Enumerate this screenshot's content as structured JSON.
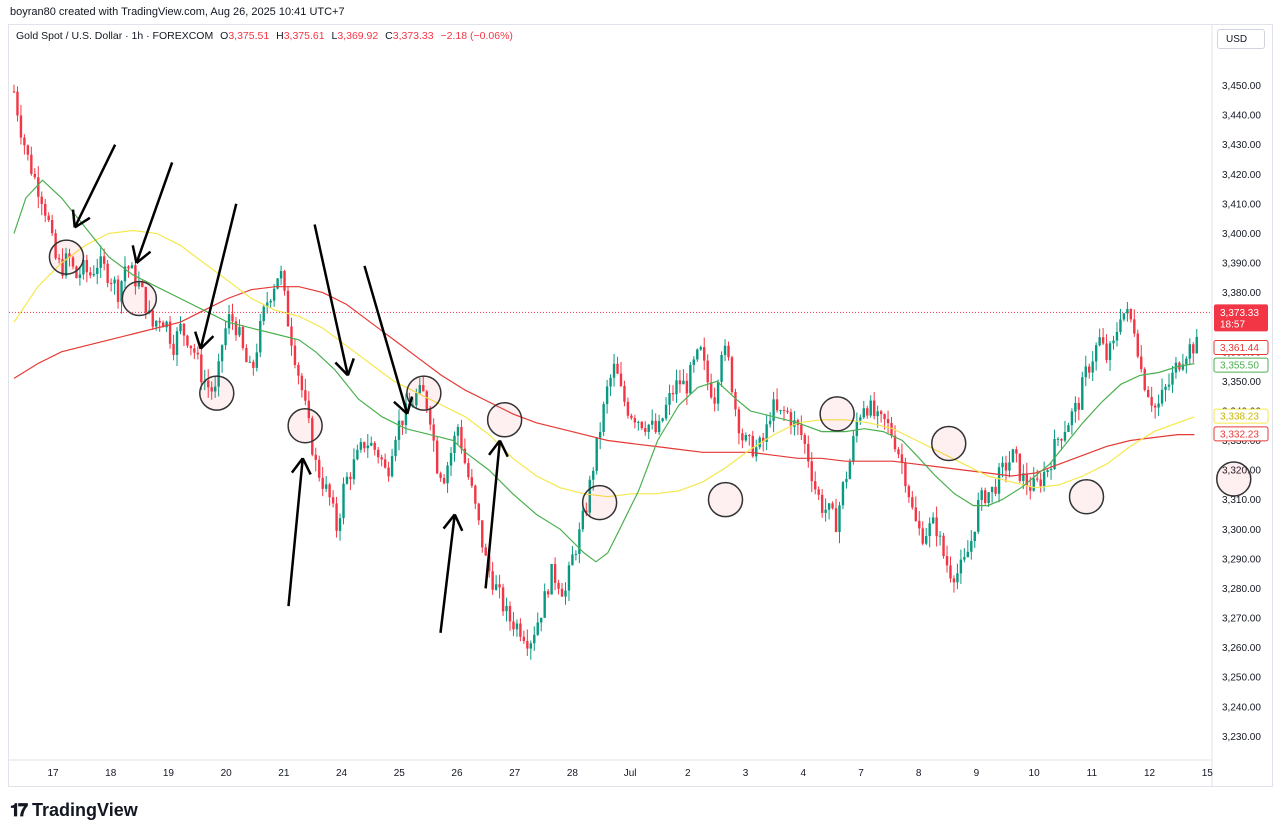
{
  "header": {
    "text": "boyran80 created with TradingView.com, Aug 26, 2025 10:41 UTC+7"
  },
  "legend": {
    "symbol": "Gold Spot / U.S. Dollar · 1h · FOREXCOM",
    "o_label": "O",
    "o": "3,375.51",
    "h_label": "H",
    "h": "3,375.61",
    "l_label": "L",
    "l": "3,369.92",
    "c_label": "C",
    "c": "3,373.33",
    "change": "−2.18 (−0.06%)"
  },
  "currency": "USD",
  "footer": {
    "brand": "TradingView"
  },
  "colors": {
    "up": "#089981",
    "down": "#f23645",
    "ma_green": "#4caf50",
    "ma_yellow": "#f5e84a",
    "ma_red": "#e53935"
  },
  "chart_data": {
    "type": "candlestick",
    "ylim": [
      3222,
      3462
    ],
    "y_ticks": [
      "3,230.00",
      "3,240.00",
      "3,250.00",
      "3,260.00",
      "3,270.00",
      "3,280.00",
      "3,290.00",
      "3,300.00",
      "3,310.00",
      "3,320.00",
      "3,330.00",
      "3,340.00",
      "3,350.00",
      "3,360.00",
      "3,370.00",
      "3,380.00",
      "3,390.00",
      "3,400.00",
      "3,410.00",
      "3,420.00",
      "3,430.00",
      "3,440.00",
      "3,450.00"
    ],
    "x_ticks": [
      "17",
      "18",
      "19",
      "20",
      "21",
      "24",
      "25",
      "26",
      "27",
      "28",
      "Jul",
      "2",
      "3",
      "4",
      "7",
      "8",
      "9",
      "10",
      "11",
      "12",
      "15"
    ],
    "last_price": {
      "value": 3373.33,
      "label": "3,373.33",
      "countdown": "18:57"
    },
    "price_labels": [
      {
        "label": "3,361.44",
        "value": 3361.44,
        "color": "#e53935"
      },
      {
        "label": "3,355.50",
        "value": 3355.5,
        "color": "#4caf50"
      },
      {
        "label": "3,338.23",
        "value": 3338.23,
        "color": "#f5e84a"
      },
      {
        "label": "3,332.23",
        "value": 3332.23,
        "color": "#e53935"
      }
    ],
    "close_path": [
      [
        0,
        3448
      ],
      [
        0.3,
        3435
      ],
      [
        0.6,
        3425
      ],
      [
        0.9,
        3418
      ],
      [
        1.2,
        3412
      ],
      [
        1.5,
        3402
      ],
      [
        1.7,
        3392
      ],
      [
        2.0,
        3388
      ],
      [
        2.3,
        3392
      ],
      [
        2.6,
        3385
      ],
      [
        2.9,
        3388
      ],
      [
        3.2,
        3386
      ],
      [
        3.5,
        3390
      ],
      [
        3.8,
        3388
      ],
      [
        4.1,
        3385
      ],
      [
        4.4,
        3380
      ],
      [
        4.7,
        3390
      ],
      [
        5.0,
        3386
      ],
      [
        5.3,
        3382
      ],
      [
        5.6,
        3375
      ],
      [
        5.8,
        3368
      ],
      [
        6.1,
        3372
      ],
      [
        6.4,
        3370
      ],
      [
        6.7,
        3362
      ],
      [
        7.0,
        3368
      ],
      [
        7.3,
        3365
      ],
      [
        7.6,
        3360
      ],
      [
        7.9,
        3352
      ],
      [
        8.2,
        3348
      ],
      [
        8.5,
        3346
      ],
      [
        8.8,
        3365
      ],
      [
        9.1,
        3372
      ],
      [
        9.4,
        3368
      ],
      [
        9.7,
        3358
      ],
      [
        10.0,
        3352
      ],
      [
        10.3,
        3365
      ],
      [
        10.6,
        3376
      ],
      [
        10.9,
        3382
      ],
      [
        11.2,
        3388
      ],
      [
        11.5,
        3372
      ],
      [
        11.8,
        3360
      ],
      [
        12.1,
        3348
      ],
      [
        12.4,
        3335
      ],
      [
        12.7,
        3322
      ],
      [
        13.0,
        3316
      ],
      [
        13.3,
        3310
      ],
      [
        13.6,
        3300
      ],
      [
        13.9,
        3315
      ],
      [
        14.2,
        3320
      ],
      [
        14.5,
        3325
      ],
      [
        14.8,
        3330
      ],
      [
        15.1,
        3328
      ],
      [
        15.4,
        3325
      ],
      [
        15.7,
        3318
      ],
      [
        16.0,
        3332
      ],
      [
        16.3,
        3337
      ],
      [
        16.6,
        3340
      ],
      [
        16.9,
        3345
      ],
      [
        17.2,
        3346
      ],
      [
        17.5,
        3340
      ],
      [
        17.8,
        3322
      ],
      [
        18.1,
        3318
      ],
      [
        18.4,
        3326
      ],
      [
        18.7,
        3335
      ],
      [
        19.0,
        3322
      ],
      [
        19.3,
        3312
      ],
      [
        19.6,
        3300
      ],
      [
        19.9,
        3288
      ],
      [
        20.2,
        3282
      ],
      [
        20.5,
        3276
      ],
      [
        20.8,
        3270
      ],
      [
        21.1,
        3268
      ],
      [
        21.4,
        3266
      ],
      [
        21.7,
        3262
      ],
      [
        22.0,
        3268
      ],
      [
        22.3,
        3275
      ],
      [
        22.6,
        3285
      ],
      [
        22.9,
        3283
      ],
      [
        23.2,
        3278
      ],
      [
        23.5,
        3290
      ],
      [
        23.8,
        3298
      ],
      [
        24.1,
        3308
      ],
      [
        24.4,
        3322
      ],
      [
        24.7,
        3335
      ],
      [
        25.0,
        3348
      ],
      [
        25.3,
        3355
      ],
      [
        25.6,
        3345
      ],
      [
        25.9,
        3340
      ],
      [
        26.2,
        3338
      ],
      [
        26.5,
        3336
      ],
      [
        26.8,
        3335
      ],
      [
        27.1,
        3332
      ],
      [
        27.4,
        3340
      ],
      [
        27.7,
        3346
      ],
      [
        28.0,
        3350
      ],
      [
        28.3,
        3348
      ],
      [
        28.6,
        3355
      ],
      [
        28.9,
        3360
      ],
      [
        29.2,
        3350
      ],
      [
        29.5,
        3345
      ],
      [
        29.8,
        3362
      ],
      [
        30.1,
        3356
      ],
      [
        30.4,
        3340
      ],
      [
        30.7,
        3330
      ],
      [
        31.0,
        3328
      ],
      [
        31.3,
        3327
      ],
      [
        31.6,
        3330
      ],
      [
        31.9,
        3342
      ],
      [
        32.2,
        3338
      ],
      [
        32.5,
        3340
      ],
      [
        32.8,
        3336
      ],
      [
        33.1,
        3333
      ],
      [
        33.4,
        3326
      ],
      [
        33.7,
        3315
      ],
      [
        34.0,
        3308
      ],
      [
        34.3,
        3306
      ],
      [
        34.6,
        3302
      ],
      [
        34.9,
        3314
      ],
      [
        35.2,
        3323
      ],
      [
        35.5,
        3337
      ],
      [
        35.8,
        3343
      ],
      [
        36.1,
        3340
      ],
      [
        36.4,
        3336
      ],
      [
        36.7,
        3336
      ],
      [
        37.0,
        3332
      ],
      [
        37.3,
        3325
      ],
      [
        37.6,
        3316
      ],
      [
        37.9,
        3303
      ],
      [
        38.2,
        3298
      ],
      [
        38.5,
        3300
      ],
      [
        38.8,
        3302
      ],
      [
        39.1,
        3292
      ],
      [
        39.4,
        3286
      ],
      [
        39.7,
        3285
      ],
      [
        40.0,
        3288
      ],
      [
        40.3,
        3296
      ],
      [
        40.6,
        3308
      ],
      [
        40.9,
        3312
      ],
      [
        41.2,
        3313
      ],
      [
        41.5,
        3318
      ],
      [
        41.8,
        3322
      ],
      [
        42.1,
        3325
      ],
      [
        42.4,
        3318
      ],
      [
        42.7,
        3315
      ],
      [
        43.0,
        3314
      ],
      [
        43.3,
        3318
      ],
      [
        43.6,
        3322
      ],
      [
        43.9,
        3330
      ],
      [
        44.2,
        3334
      ],
      [
        44.5,
        3338
      ],
      [
        44.8,
        3342
      ],
      [
        45.1,
        3352
      ],
      [
        45.4,
        3358
      ],
      [
        45.7,
        3364
      ],
      [
        46.0,
        3358
      ],
      [
        46.3,
        3362
      ],
      [
        46.6,
        3374
      ],
      [
        46.9,
        3372
      ],
      [
        47.2,
        3368
      ],
      [
        47.5,
        3352
      ],
      [
        47.8,
        3346
      ],
      [
        48.1,
        3340
      ],
      [
        48.4,
        3346
      ],
      [
        48.7,
        3350
      ],
      [
        49.0,
        3356
      ],
      [
        49.3,
        3360
      ],
      [
        49.6,
        3362
      ]
    ],
    "ma_green": [
      [
        0,
        3400
      ],
      [
        0.5,
        3412
      ],
      [
        1.2,
        3418
      ],
      [
        2.0,
        3412
      ],
      [
        3.0,
        3402
      ],
      [
        4.0,
        3392
      ],
      [
        5.0,
        3386
      ],
      [
        6.0,
        3382
      ],
      [
        7.0,
        3378
      ],
      [
        8.0,
        3374
      ],
      [
        9.0,
        3370
      ],
      [
        10.0,
        3368
      ],
      [
        11.0,
        3366
      ],
      [
        12.0,
        3364
      ],
      [
        12.7,
        3360
      ],
      [
        13.5,
        3354
      ],
      [
        14.5,
        3344
      ],
      [
        15.5,
        3338
      ],
      [
        16.5,
        3334
      ],
      [
        17.5,
        3332
      ],
      [
        18.5,
        3330
      ],
      [
        19.0,
        3326
      ],
      [
        20.0,
        3320
      ],
      [
        21.0,
        3312
      ],
      [
        22.0,
        3305
      ],
      [
        23.0,
        3300
      ],
      [
        24.0,
        3292
      ],
      [
        24.5,
        3289
      ],
      [
        25.0,
        3292
      ],
      [
        25.5,
        3300
      ],
      [
        26.3,
        3313
      ],
      [
        27.1,
        3330
      ],
      [
        28.0,
        3342
      ],
      [
        28.8,
        3348
      ],
      [
        29.6,
        3350
      ],
      [
        30.4,
        3344
      ],
      [
        31.0,
        3340
      ],
      [
        32.0,
        3338
      ],
      [
        33.0,
        3336
      ],
      [
        34.0,
        3333
      ],
      [
        35.0,
        3333
      ],
      [
        35.8,
        3334
      ],
      [
        36.6,
        3333
      ],
      [
        37.4,
        3330
      ],
      [
        38.0,
        3325
      ],
      [
        38.8,
        3318
      ],
      [
        39.6,
        3312
      ],
      [
        40.4,
        3308
      ],
      [
        41.0,
        3308
      ],
      [
        41.6,
        3310
      ],
      [
        42.4,
        3314
      ],
      [
        43.0,
        3318
      ],
      [
        43.6,
        3322
      ],
      [
        44.4,
        3330
      ],
      [
        45.0,
        3336
      ],
      [
        45.8,
        3343
      ],
      [
        46.6,
        3349
      ],
      [
        47.4,
        3352
      ],
      [
        48.2,
        3353
      ],
      [
        49.0,
        3355
      ],
      [
        49.7,
        3356
      ]
    ],
    "ma_yellow": [
      [
        0,
        3370
      ],
      [
        1.0,
        3382
      ],
      [
        2.0,
        3390
      ],
      [
        3.0,
        3396
      ],
      [
        4.0,
        3400
      ],
      [
        5.0,
        3401
      ],
      [
        6.0,
        3400
      ],
      [
        7.0,
        3396
      ],
      [
        8.0,
        3390
      ],
      [
        9.0,
        3384
      ],
      [
        10.0,
        3378
      ],
      [
        11.0,
        3374
      ],
      [
        12.0,
        3372
      ],
      [
        13.0,
        3368
      ],
      [
        14.0,
        3362
      ],
      [
        15.0,
        3356
      ],
      [
        16.0,
        3350
      ],
      [
        17.0,
        3346
      ],
      [
        18.0,
        3342
      ],
      [
        19.0,
        3338
      ],
      [
        20.0,
        3332
      ],
      [
        21.0,
        3324
      ],
      [
        22.0,
        3318
      ],
      [
        23.0,
        3314
      ],
      [
        24.0,
        3312
      ],
      [
        25.0,
        3311
      ],
      [
        26.0,
        3312
      ],
      [
        27.0,
        3312
      ],
      [
        28.0,
        3313
      ],
      [
        29.0,
        3316
      ],
      [
        30.0,
        3321
      ],
      [
        31.0,
        3327
      ],
      [
        32.0,
        3332
      ],
      [
        33.0,
        3336
      ],
      [
        34.0,
        3337
      ],
      [
        35.0,
        3337
      ],
      [
        36.0,
        3336
      ],
      [
        37.0,
        3334
      ],
      [
        38.0,
        3330
      ],
      [
        39.0,
        3326
      ],
      [
        40.0,
        3322
      ],
      [
        41.0,
        3318
      ],
      [
        42.0,
        3316
      ],
      [
        43.0,
        3314
      ],
      [
        44.0,
        3315
      ],
      [
        45.0,
        3318
      ],
      [
        46.0,
        3322
      ],
      [
        47.0,
        3328
      ],
      [
        48.0,
        3333
      ],
      [
        49.0,
        3336
      ],
      [
        49.7,
        3338
      ]
    ],
    "ma_red": [
      [
        0,
        3351
      ],
      [
        1.0,
        3356
      ],
      [
        2.0,
        3360
      ],
      [
        3.0,
        3362
      ],
      [
        4.0,
        3364
      ],
      [
        5.0,
        3366
      ],
      [
        6.0,
        3368
      ],
      [
        7.0,
        3370
      ],
      [
        8.0,
        3374
      ],
      [
        9.0,
        3378
      ],
      [
        10.0,
        3381
      ],
      [
        11.0,
        3382
      ],
      [
        12.0,
        3382
      ],
      [
        13.0,
        3380
      ],
      [
        14.0,
        3376
      ],
      [
        15.0,
        3370
      ],
      [
        16.0,
        3364
      ],
      [
        17.0,
        3358
      ],
      [
        18.0,
        3352
      ],
      [
        19.0,
        3347
      ],
      [
        20.0,
        3343
      ],
      [
        21.0,
        3339
      ],
      [
        22.0,
        3336
      ],
      [
        23.0,
        3334
      ],
      [
        24.0,
        3332
      ],
      [
        25.0,
        3330
      ],
      [
        26.0,
        3329
      ],
      [
        27.0,
        3328
      ],
      [
        28.0,
        3327
      ],
      [
        29.0,
        3326
      ],
      [
        30.0,
        3326
      ],
      [
        31.0,
        3326
      ],
      [
        32.0,
        3325
      ],
      [
        33.0,
        3324
      ],
      [
        34.0,
        3324
      ],
      [
        35.0,
        3323
      ],
      [
        36.0,
        3323
      ],
      [
        37.0,
        3323
      ],
      [
        38.0,
        3322
      ],
      [
        39.0,
        3321
      ],
      [
        40.0,
        3320
      ],
      [
        41.0,
        3319
      ],
      [
        42.0,
        3318
      ],
      [
        43.0,
        3319
      ],
      [
        44.0,
        3322
      ],
      [
        45.0,
        3325
      ],
      [
        46.0,
        3328
      ],
      [
        47.0,
        3330
      ],
      [
        48.0,
        3331
      ],
      [
        49.0,
        3332
      ],
      [
        49.7,
        3332
      ]
    ],
    "circles": [
      [
        3.05,
        3392
      ],
      [
        6.12,
        3378
      ],
      [
        9.38,
        3346
      ],
      [
        13.1,
        3335
      ],
      [
        18.1,
        3346
      ],
      [
        21.5,
        3337
      ],
      [
        25.5,
        3309
      ],
      [
        30.8,
        3310
      ],
      [
        35.5,
        3339
      ],
      [
        40.2,
        3329
      ],
      [
        46.0,
        3311
      ],
      [
        52.2,
        3317
      ]
    ],
    "arrows_down": [
      [
        5.1,
        3430,
        3.4,
        3402
      ],
      [
        7.5,
        3424,
        6.0,
        3390
      ],
      [
        10.2,
        3410,
        8.7,
        3361
      ],
      [
        13.5,
        3403,
        14.9,
        3352
      ],
      [
        15.6,
        3389,
        17.4,
        3339
      ]
    ],
    "arrows_up": [
      [
        12.4,
        3274,
        13.0,
        3324
      ],
      [
        18.8,
        3265,
        19.4,
        3305
      ],
      [
        20.7,
        3280,
        21.3,
        3330
      ]
    ]
  }
}
